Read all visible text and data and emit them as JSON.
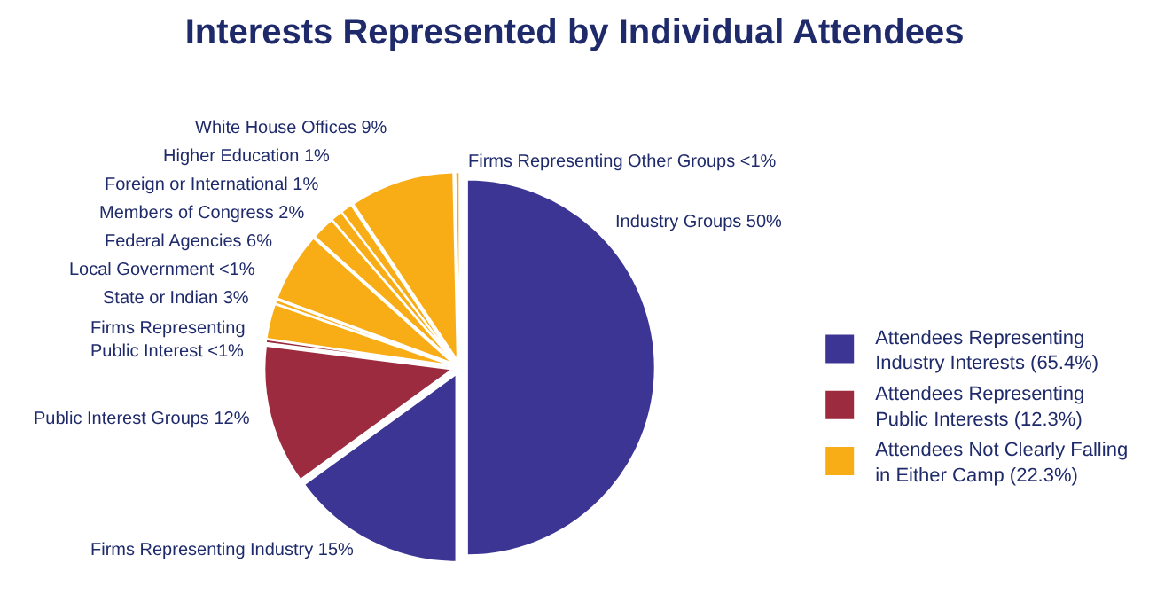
{
  "chart_data": {
    "type": "pie",
    "title": "Interests Represented by Individual Attendees",
    "categories": [
      "Industry Groups",
      "Firms Representing Industry",
      "Public Interest Groups",
      "Firms Representing\nPublic Interest",
      "State or Indian",
      "Local Government",
      "Federal Agencies",
      "Members of Congress",
      "Foreign or International",
      "Higher Education",
      "White House Offices",
      "Firms Representing Other Groups"
    ],
    "values": [
      50,
      15,
      12,
      0.3,
      3,
      0.35,
      6,
      2,
      1,
      1,
      9,
      0.35
    ],
    "colors": [
      "#3c3594",
      "#3c3594",
      "#9c2b3f",
      "#9c2b3f",
      "#f8ad17",
      "#f8ad17",
      "#f8ad17",
      "#f8ad17",
      "#f8ad17",
      "#f8ad17",
      "#f8ad17",
      "#f8ad17"
    ],
    "annotations": [
      "Attendees Representing\nIndustry Interests (65.4%)",
      "Attendees Representing\nPublic Interests (12.3%)",
      "Attendees Not Clearly Falling\nin Either Camp (22.3%)"
    ],
    "value_labels": [
      "50%",
      "15%",
      "12%",
      "<1%",
      "3%",
      "<1%",
      "6%",
      "2%",
      "1%",
      "1%",
      "9%",
      "<1%"
    ]
  }
}
